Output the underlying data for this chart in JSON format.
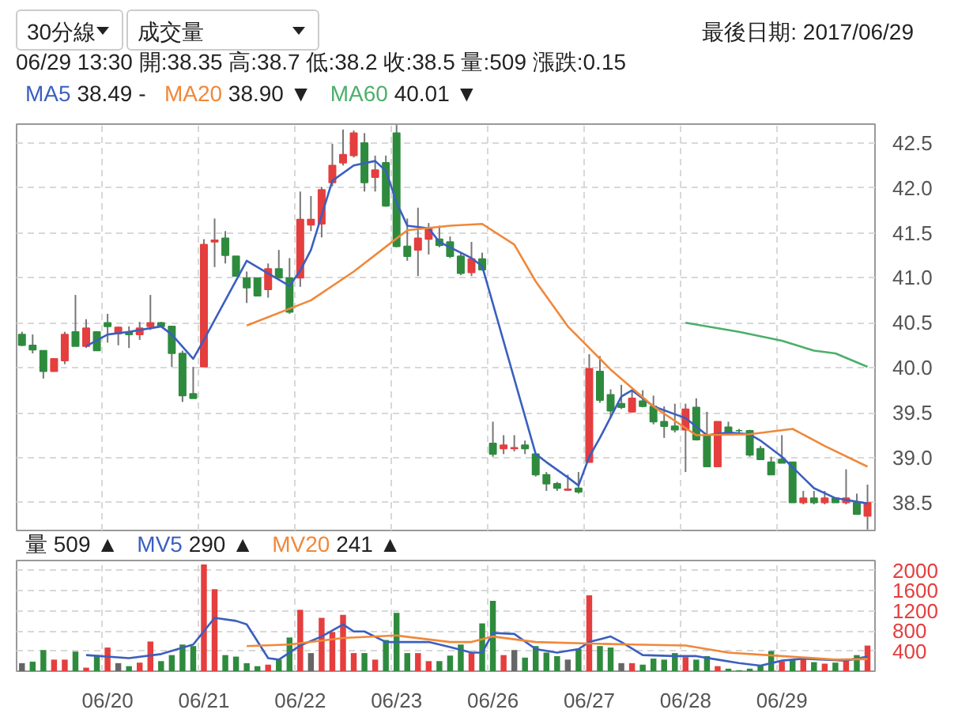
{
  "chart_data": [
    {
      "type": "candlestick",
      "annotations": [
        "30分線",
        "成交量",
        "最後日期: 2017/06/29",
        "06/29 13:30 開:38.35 高:38.7 低:38.2 收:38.5 量:509 漲跌:0.15",
        "38.49 -",
        "38.90 ▼",
        "40.01 ▼"
      ],
      "categories": [
        null,
        null,
        null,
        null,
        null,
        null,
        null,
        null,
        null,
        null,
        null,
        null,
        null,
        null,
        null,
        null,
        null,
        null,
        null,
        null,
        null,
        null,
        null,
        null,
        null,
        null,
        null,
        null,
        null,
        null,
        null,
        null,
        null,
        null,
        null,
        null,
        null,
        null,
        null,
        null,
        null,
        null,
        null,
        null,
        null,
        null,
        null,
        null,
        null,
        null,
        null,
        null,
        null,
        null,
        null,
        null,
        null,
        null,
        null,
        null,
        null,
        null,
        null,
        null,
        null,
        null,
        null,
        null,
        null,
        null,
        null,
        null,
        null,
        null,
        null,
        null,
        null,
        null,
        null,
        null
      ],
      "ohlc": [
        [
          40.37,
          40.4,
          40.24,
          40.25
        ],
        [
          40.25,
          40.37,
          40.16,
          40.2
        ],
        [
          40.19,
          40.19,
          39.88,
          39.96
        ],
        [
          39.96,
          40.1,
          39.96,
          40.1
        ],
        [
          40.08,
          40.4,
          40.04,
          40.37
        ],
        [
          40.4,
          40.81,
          40.24,
          40.24
        ],
        [
          40.24,
          40.54,
          40.22,
          40.44
        ],
        [
          40.4,
          40.4,
          40.19,
          40.19
        ],
        [
          40.5,
          40.6,
          40.28,
          40.46
        ],
        [
          40.38,
          40.46,
          40.25,
          40.45
        ],
        [
          40.4,
          40.46,
          40.22,
          40.37
        ],
        [
          40.37,
          40.51,
          40.31,
          40.44
        ],
        [
          40.46,
          40.81,
          40.42,
          40.5
        ],
        [
          40.5,
          40.51,
          40.46,
          40.46
        ],
        [
          40.46,
          40.46,
          40.01,
          40.16
        ],
        [
          40.16,
          40.19,
          39.62,
          39.69
        ],
        [
          39.71,
          40.01,
          39.66,
          39.66
        ],
        [
          40.01,
          41.43,
          40.01,
          41.37
        ],
        [
          41.4,
          41.66,
          41.12,
          41.42
        ],
        [
          41.44,
          41.52,
          41.16,
          41.25
        ],
        [
          41.24,
          41.24,
          41.02,
          41.02
        ],
        [
          41.0,
          41.07,
          40.72,
          40.89
        ],
        [
          41.0,
          41.0,
          40.8,
          40.8
        ],
        [
          40.87,
          41.16,
          40.78,
          41.1
        ],
        [
          41.1,
          41.31,
          41.0,
          41.0
        ],
        [
          41.0,
          41.22,
          40.6,
          40.62
        ],
        [
          41.0,
          41.96,
          40.9,
          41.65
        ],
        [
          41.59,
          41.91,
          41.52,
          41.65
        ],
        [
          41.6,
          42.01,
          41.45,
          41.98
        ],
        [
          42.06,
          42.49,
          42.02,
          42.25
        ],
        [
          42.28,
          42.65,
          42.25,
          42.37
        ],
        [
          42.36,
          42.64,
          42.34,
          42.61
        ],
        [
          42.5,
          42.61,
          41.96,
          42.06
        ],
        [
          42.12,
          42.36,
          41.96,
          42.2
        ],
        [
          42.28,
          42.36,
          41.79,
          41.8
        ],
        [
          42.61,
          42.7,
          41.34,
          41.35
        ],
        [
          41.35,
          41.66,
          41.19,
          41.24
        ],
        [
          41.31,
          41.78,
          41.02,
          41.44
        ],
        [
          41.43,
          41.61,
          41.26,
          41.55
        ],
        [
          41.43,
          41.58,
          41.34,
          41.36
        ],
        [
          41.4,
          41.46,
          41.22,
          41.24
        ],
        [
          41.24,
          41.28,
          41.03,
          41.05
        ],
        [
          41.06,
          41.4,
          41.02,
          41.21
        ],
        [
          41.21,
          41.28,
          41.08,
          41.09
        ],
        [
          39.16,
          39.4,
          39.01,
          39.04
        ],
        [
          39.1,
          39.25,
          39.04,
          39.14
        ],
        [
          39.1,
          39.25,
          39.07,
          39.11
        ],
        [
          39.14,
          39.19,
          39.04,
          39.1
        ],
        [
          39.04,
          39.04,
          38.79,
          38.81
        ],
        [
          38.81,
          38.84,
          38.63,
          38.71
        ],
        [
          38.71,
          38.73,
          38.63,
          38.66
        ],
        [
          38.64,
          38.81,
          38.63,
          38.65
        ],
        [
          38.66,
          38.84,
          38.6,
          38.62
        ],
        [
          38.95,
          40.15,
          38.95,
          39.99
        ],
        [
          39.96,
          40.13,
          39.61,
          39.64
        ],
        [
          39.7,
          39.76,
          39.44,
          39.52
        ],
        [
          39.6,
          39.81,
          39.54,
          39.56
        ],
        [
          39.51,
          39.75,
          39.5,
          39.66
        ],
        [
          39.63,
          39.75,
          39.56,
          39.57
        ],
        [
          39.57,
          39.69,
          39.37,
          39.4
        ],
        [
          39.4,
          39.57,
          39.22,
          39.35
        ],
        [
          39.35,
          39.6,
          39.28,
          39.31
        ],
        [
          39.31,
          39.6,
          38.84,
          39.54
        ],
        [
          39.56,
          39.66,
          39.19,
          39.2
        ],
        [
          39.25,
          39.51,
          38.9,
          38.9
        ],
        [
          38.9,
          39.4,
          38.9,
          39.4
        ],
        [
          39.34,
          39.4,
          39.25,
          39.27
        ],
        [
          39.3,
          39.32,
          39.28,
          39.3
        ],
        [
          39.3,
          39.31,
          39.01,
          39.03
        ],
        [
          39.1,
          39.13,
          38.98,
          38.98
        ],
        [
          38.95,
          39.01,
          38.81,
          38.81
        ],
        [
          38.98,
          39.25,
          38.94,
          38.94
        ],
        [
          38.95,
          38.95,
          38.5,
          38.5
        ],
        [
          38.5,
          38.63,
          38.48,
          38.55
        ],
        [
          38.55,
          38.63,
          38.48,
          38.5
        ],
        [
          38.5,
          38.63,
          38.48,
          38.55
        ],
        [
          38.55,
          38.55,
          38.5,
          38.5
        ],
        [
          38.5,
          38.87,
          38.48,
          38.55
        ],
        [
          38.5,
          38.6,
          38.37,
          38.37
        ],
        [
          38.35,
          38.7,
          38.2,
          38.5
        ]
      ],
      "colors": [
        "#2e8b3e",
        "#2e8b3e",
        "#2e8b3e",
        "#e53e3e",
        "#e53e3e",
        "#2e8b3e",
        "#e53e3e",
        "#2e8b3e",
        "#2e8b3e",
        "#e53e3e",
        "#2e8b3e",
        "#e53e3e",
        "#e53e3e",
        "#2e8b3e",
        "#2e8b3e",
        "#2e8b3e",
        "#2e8b3e",
        "#e53e3e",
        "#e53e3e",
        "#2e8b3e",
        "#2e8b3e",
        "#2e8b3e",
        "#2e8b3e",
        "#e53e3e",
        "#2e8b3e",
        "#2e8b3e",
        "#e53e3e",
        "#e53e3e",
        "#e53e3e",
        "#e53e3e",
        "#e53e3e",
        "#e53e3e",
        "#2e8b3e",
        "#e53e3e",
        "#2e8b3e",
        "#2e8b3e",
        "#2e8b3e",
        "#e53e3e",
        "#e53e3e",
        "#2e8b3e",
        "#2e8b3e",
        "#2e8b3e",
        "#e53e3e",
        "#2e8b3e",
        "#2e8b3e",
        "#e53e3e",
        "#e53e3e",
        "#2e8b3e",
        "#2e8b3e",
        "#2e8b3e",
        "#2e8b3e",
        "#e53e3e",
        "#2e8b3e",
        "#e53e3e",
        "#2e8b3e",
        "#2e8b3e",
        "#2e8b3e",
        "#e53e3e",
        "#2e8b3e",
        "#2e8b3e",
        "#2e8b3e",
        "#2e8b3e",
        "#e53e3e",
        "#2e8b3e",
        "#2e8b3e",
        "#e53e3e",
        "#2e8b3e",
        "#2e8b3e",
        "#2e8b3e",
        "#2e8b3e",
        "#2e8b3e",
        "#2e8b3e",
        "#2e8b3e",
        "#e53e3e",
        "#2e8b3e",
        "#e53e3e",
        "#2e8b3e",
        "#e53e3e",
        "#2e8b3e",
        "#e53e3e"
      ],
      "series": [
        {
          "name": "MA5",
          "type": "line",
          "color": "#3b5fc0",
          "values": [
            null,
            null,
            null,
            null,
            null,
            null,
            40.24,
            null,
            40.37,
            null,
            40.4,
            null,
            40.44,
            40.46,
            40.37,
            null,
            40.1,
            40.31,
            null,
            null,
            null,
            41.19,
            41.12,
            null,
            null,
            40.91,
            41.08,
            41.31,
            null,
            42.08,
            null,
            42.25,
            null,
            42.3,
            42.19,
            41.84,
            41.58,
            null,
            41.55,
            41.4,
            41.34,
            41.28,
            41.22,
            41.13,
            null,
            null,
            null,
            null,
            39.04,
            38.95,
            null,
            38.78,
            38.69,
            39.01,
            39.22,
            39.45,
            39.68,
            39.75,
            null,
            39.57,
            null,
            null,
            39.44,
            null,
            39.25,
            null,
            39.28,
            null,
            39.26,
            39.19,
            null,
            39.01,
            null,
            null,
            38.66,
            null,
            38.55,
            null,
            null,
            38.49
          ]
        },
        {
          "name": "MA20",
          "type": "line",
          "color": "#f0883a",
          "values": [
            null,
            null,
            null,
            null,
            null,
            null,
            null,
            null,
            null,
            null,
            null,
            null,
            null,
            null,
            null,
            null,
            null,
            null,
            null,
            null,
            null,
            40.47,
            null,
            null,
            null,
            null,
            null,
            40.75,
            null,
            null,
            null,
            41.07,
            null,
            null,
            null,
            null,
            41.53,
            null,
            null,
            null,
            41.58,
            null,
            null,
            41.6,
            null,
            null,
            41.37,
            null,
            40.96,
            null,
            null,
            40.46,
            null,
            40.22,
            null,
            39.98,
            null,
            null,
            null,
            39.57,
            null,
            null,
            null,
            39.25,
            null,
            null,
            null,
            null,
            39.26,
            null,
            null,
            null,
            39.32,
            null,
            null,
            39.13,
            null,
            null,
            null,
            38.9
          ]
        },
        {
          "name": "MA60",
          "type": "line",
          "color": "#4caf6a",
          "values": [
            null,
            null,
            null,
            null,
            null,
            null,
            null,
            null,
            null,
            null,
            null,
            null,
            null,
            null,
            null,
            null,
            null,
            null,
            null,
            null,
            null,
            null,
            null,
            null,
            null,
            null,
            null,
            null,
            null,
            null,
            null,
            null,
            null,
            null,
            null,
            null,
            null,
            null,
            null,
            null,
            null,
            null,
            null,
            null,
            null,
            null,
            null,
            null,
            null,
            null,
            null,
            null,
            null,
            null,
            null,
            null,
            null,
            null,
            null,
            null,
            null,
            null,
            40.5,
            null,
            null,
            null,
            null,
            40.4,
            null,
            null,
            null,
            40.3,
            null,
            null,
            40.19,
            null,
            40.16,
            null,
            null,
            40.01
          ]
        }
      ],
      "ylim": [
        38.19,
        42.71
      ],
      "yticks": [
        38.5,
        {
          "value": 39,
          "label": "39.0"
        },
        39.5,
        {
          "value": 40,
          "label": "40.0"
        },
        40.5,
        {
          "value": 41,
          "label": "41.0"
        },
        41.5,
        {
          "value": 42,
          "label": "42.0"
        },
        42.5
      ],
      "tick_labels": "y",
      "grid": true,
      "legend": "top",
      "line_style": "solid",
      "marker": "none"
    },
    {
      "type": "bar",
      "annotations": [
        "量 509 ▲",
        "290 ▲",
        "241 ▲"
      ],
      "categories": [
        null,
        null,
        null,
        null,
        null,
        null,
        null,
        null,
        "06/20",
        null,
        null,
        null,
        null,
        null,
        null,
        null,
        null,
        "06/21",
        null,
        null,
        null,
        null,
        null,
        null,
        null,
        null,
        "06/22",
        null,
        null,
        null,
        null,
        null,
        null,
        null,
        null,
        "06/23",
        null,
        null,
        null,
        null,
        null,
        null,
        null,
        null,
        "06/26",
        null,
        null,
        null,
        null,
        null,
        null,
        null,
        null,
        "06/27",
        null,
        null,
        null,
        null,
        null,
        null,
        null,
        null,
        "06/28",
        null,
        null,
        null,
        null,
        null,
        null,
        null,
        null,
        "06/29",
        null,
        null,
        null,
        null,
        null,
        null,
        null,
        null
      ],
      "series": [
        {
          "type": "bar",
          "values": [
            160,
            190,
            420,
            230,
            230,
            390,
            70,
            320,
            470,
            160,
            100,
            170,
            590,
            200,
            320,
            530,
            500,
            2120,
            1630,
            320,
            290,
            160,
            100,
            130,
            230,
            670,
            1220,
            360,
            1060,
            780,
            1120,
            360,
            360,
            230,
            620,
            1160,
            360,
            360,
            200,
            200,
            310,
            530,
            360,
            950,
            1400,
            320,
            420,
            270,
            500,
            370,
            300,
            230,
            440,
            1510,
            500,
            470,
            160,
            160,
            130,
            250,
            230,
            360,
            280,
            230,
            300,
            100,
            50,
            20,
            50,
            110,
            400,
            190,
            230,
            250,
            180,
            150,
            170,
            210,
            320,
            509
          ],
          "colors": [
            "#666666",
            "#2e8b3e",
            "#2e8b3e",
            "#e53e3e",
            "#e53e3e",
            "#2e8b3e",
            "#e53e3e",
            "#2e8b3e",
            "#e53e3e",
            "#666666",
            "#2e8b3e",
            "#e53e3e",
            "#e53e3e",
            "#2e8b3e",
            "#2e8b3e",
            "#2e8b3e",
            "#2e8b3e",
            "#e53e3e",
            "#e53e3e",
            "#2e8b3e",
            "#2e8b3e",
            "#2e8b3e",
            "#2e8b3e",
            "#e53e3e",
            "#2e8b3e",
            "#2e8b3e",
            "#e53e3e",
            "#666666",
            "#e53e3e",
            "#e53e3e",
            "#e53e3e",
            "#e53e3e",
            "#2e8b3e",
            "#e53e3e",
            "#2e8b3e",
            "#2e8b3e",
            "#2e8b3e",
            "#e53e3e",
            "#e53e3e",
            "#2e8b3e",
            "#2e8b3e",
            "#2e8b3e",
            "#e53e3e",
            "#2e8b3e",
            "#2e8b3e",
            "#e53e3e",
            "#666666",
            "#2e8b3e",
            "#2e8b3e",
            "#2e8b3e",
            "#2e8b3e",
            "#666666",
            "#2e8b3e",
            "#e53e3e",
            "#2e8b3e",
            "#2e8b3e",
            "#666666",
            "#e53e3e",
            "#2e8b3e",
            "#2e8b3e",
            "#2e8b3e",
            "#2e8b3e",
            "#e53e3e",
            "#2e8b3e",
            "#2e8b3e",
            "#e53e3e",
            "#2e8b3e",
            "#2e8b3e",
            "#2e8b3e",
            "#2e8b3e",
            "#2e8b3e",
            "#e53e3e",
            "#2e8b3e",
            "#e53e3e",
            "#2e8b3e",
            "#e53e3e",
            "#2e8b3e",
            "#e53e3e",
            "#2e8b3e",
            "#e53e3e"
          ]
        },
        {
          "name": "MV5",
          "type": "line",
          "color": "#3b5fc0",
          "values": [
            null,
            null,
            null,
            null,
            null,
            null,
            320,
            null,
            null,
            null,
            260,
            null,
            null,
            340,
            null,
            null,
            530,
            null,
            1060,
            null,
            1000,
            930,
            null,
            260,
            230,
            null,
            510,
            null,
            690,
            null,
            930,
            790,
            790,
            null,
            580,
            null,
            580,
            null,
            580,
            null,
            480,
            null,
            370,
            370,
            760,
            null,
            740,
            null,
            440,
            null,
            370,
            null,
            440,
            580,
            null,
            690,
            580,
            null,
            320,
            null,
            null,
            300,
            null,
            300,
            null,
            230,
            null,
            160,
            null,
            110,
            null,
            210,
            null,
            250,
            null,
            230,
            null,
            210,
            null,
            290
          ]
        },
        {
          "name": "MV20",
          "type": "line",
          "color": "#f0883a",
          "values": [
            null,
            null,
            null,
            null,
            null,
            null,
            null,
            null,
            null,
            null,
            null,
            null,
            null,
            null,
            null,
            null,
            null,
            null,
            null,
            null,
            null,
            500,
            null,
            null,
            null,
            530,
            null,
            null,
            null,
            null,
            660,
            null,
            null,
            null,
            null,
            710,
            null,
            null,
            null,
            null,
            580,
            null,
            580,
            null,
            690,
            null,
            null,
            null,
            580,
            null,
            null,
            null,
            null,
            550,
            null,
            null,
            null,
            530,
            null,
            null,
            null,
            null,
            510,
            null,
            null,
            null,
            370,
            null,
            null,
            null,
            null,
            300,
            null,
            null,
            null,
            null,
            230,
            null,
            null,
            241
          ]
        }
      ],
      "ylim": [
        0,
        2200
      ],
      "yticks": [
        400,
        800,
        1200,
        1600,
        2000
      ],
      "grid": true,
      "legend": "top",
      "line_style": "solid",
      "marker": "none"
    }
  ]
}
